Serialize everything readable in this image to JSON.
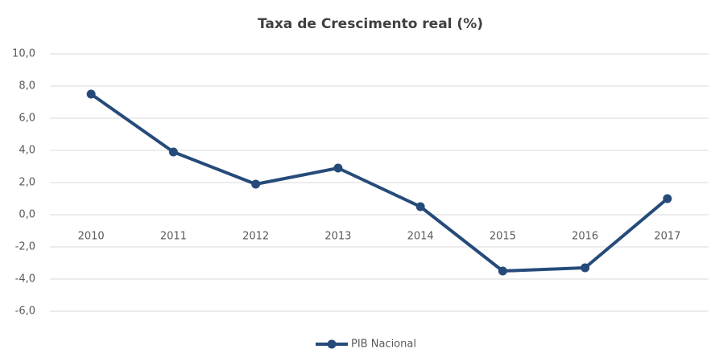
{
  "chart_data": {
    "type": "line",
    "title": "Taxa de Crescimento real (%)",
    "categories": [
      "2010",
      "2011",
      "2012",
      "2013",
      "2014",
      "2015",
      "2016",
      "2017"
    ],
    "series": [
      {
        "name": "PIB Nacional",
        "color": "#264b7a",
        "values": [
          7.5,
          3.9,
          1.9,
          2.9,
          0.5,
          -3.5,
          -3.3,
          1.0
        ]
      }
    ],
    "ylim": [
      -6,
      10
    ],
    "yticks": [
      {
        "value": -6,
        "label": "-6,0"
      },
      {
        "value": -4,
        "label": "-4,0"
      },
      {
        "value": -2,
        "label": "-2,0"
      },
      {
        "value": 0,
        "label": "0,0"
      },
      {
        "value": 2,
        "label": "2,0"
      },
      {
        "value": 4,
        "label": "4,0"
      },
      {
        "value": 6,
        "label": "6,0"
      },
      {
        "value": 8,
        "label": "8,0"
      },
      {
        "value": 10,
        "label": "10,0"
      }
    ],
    "grid": true,
    "legend": "bottom"
  }
}
